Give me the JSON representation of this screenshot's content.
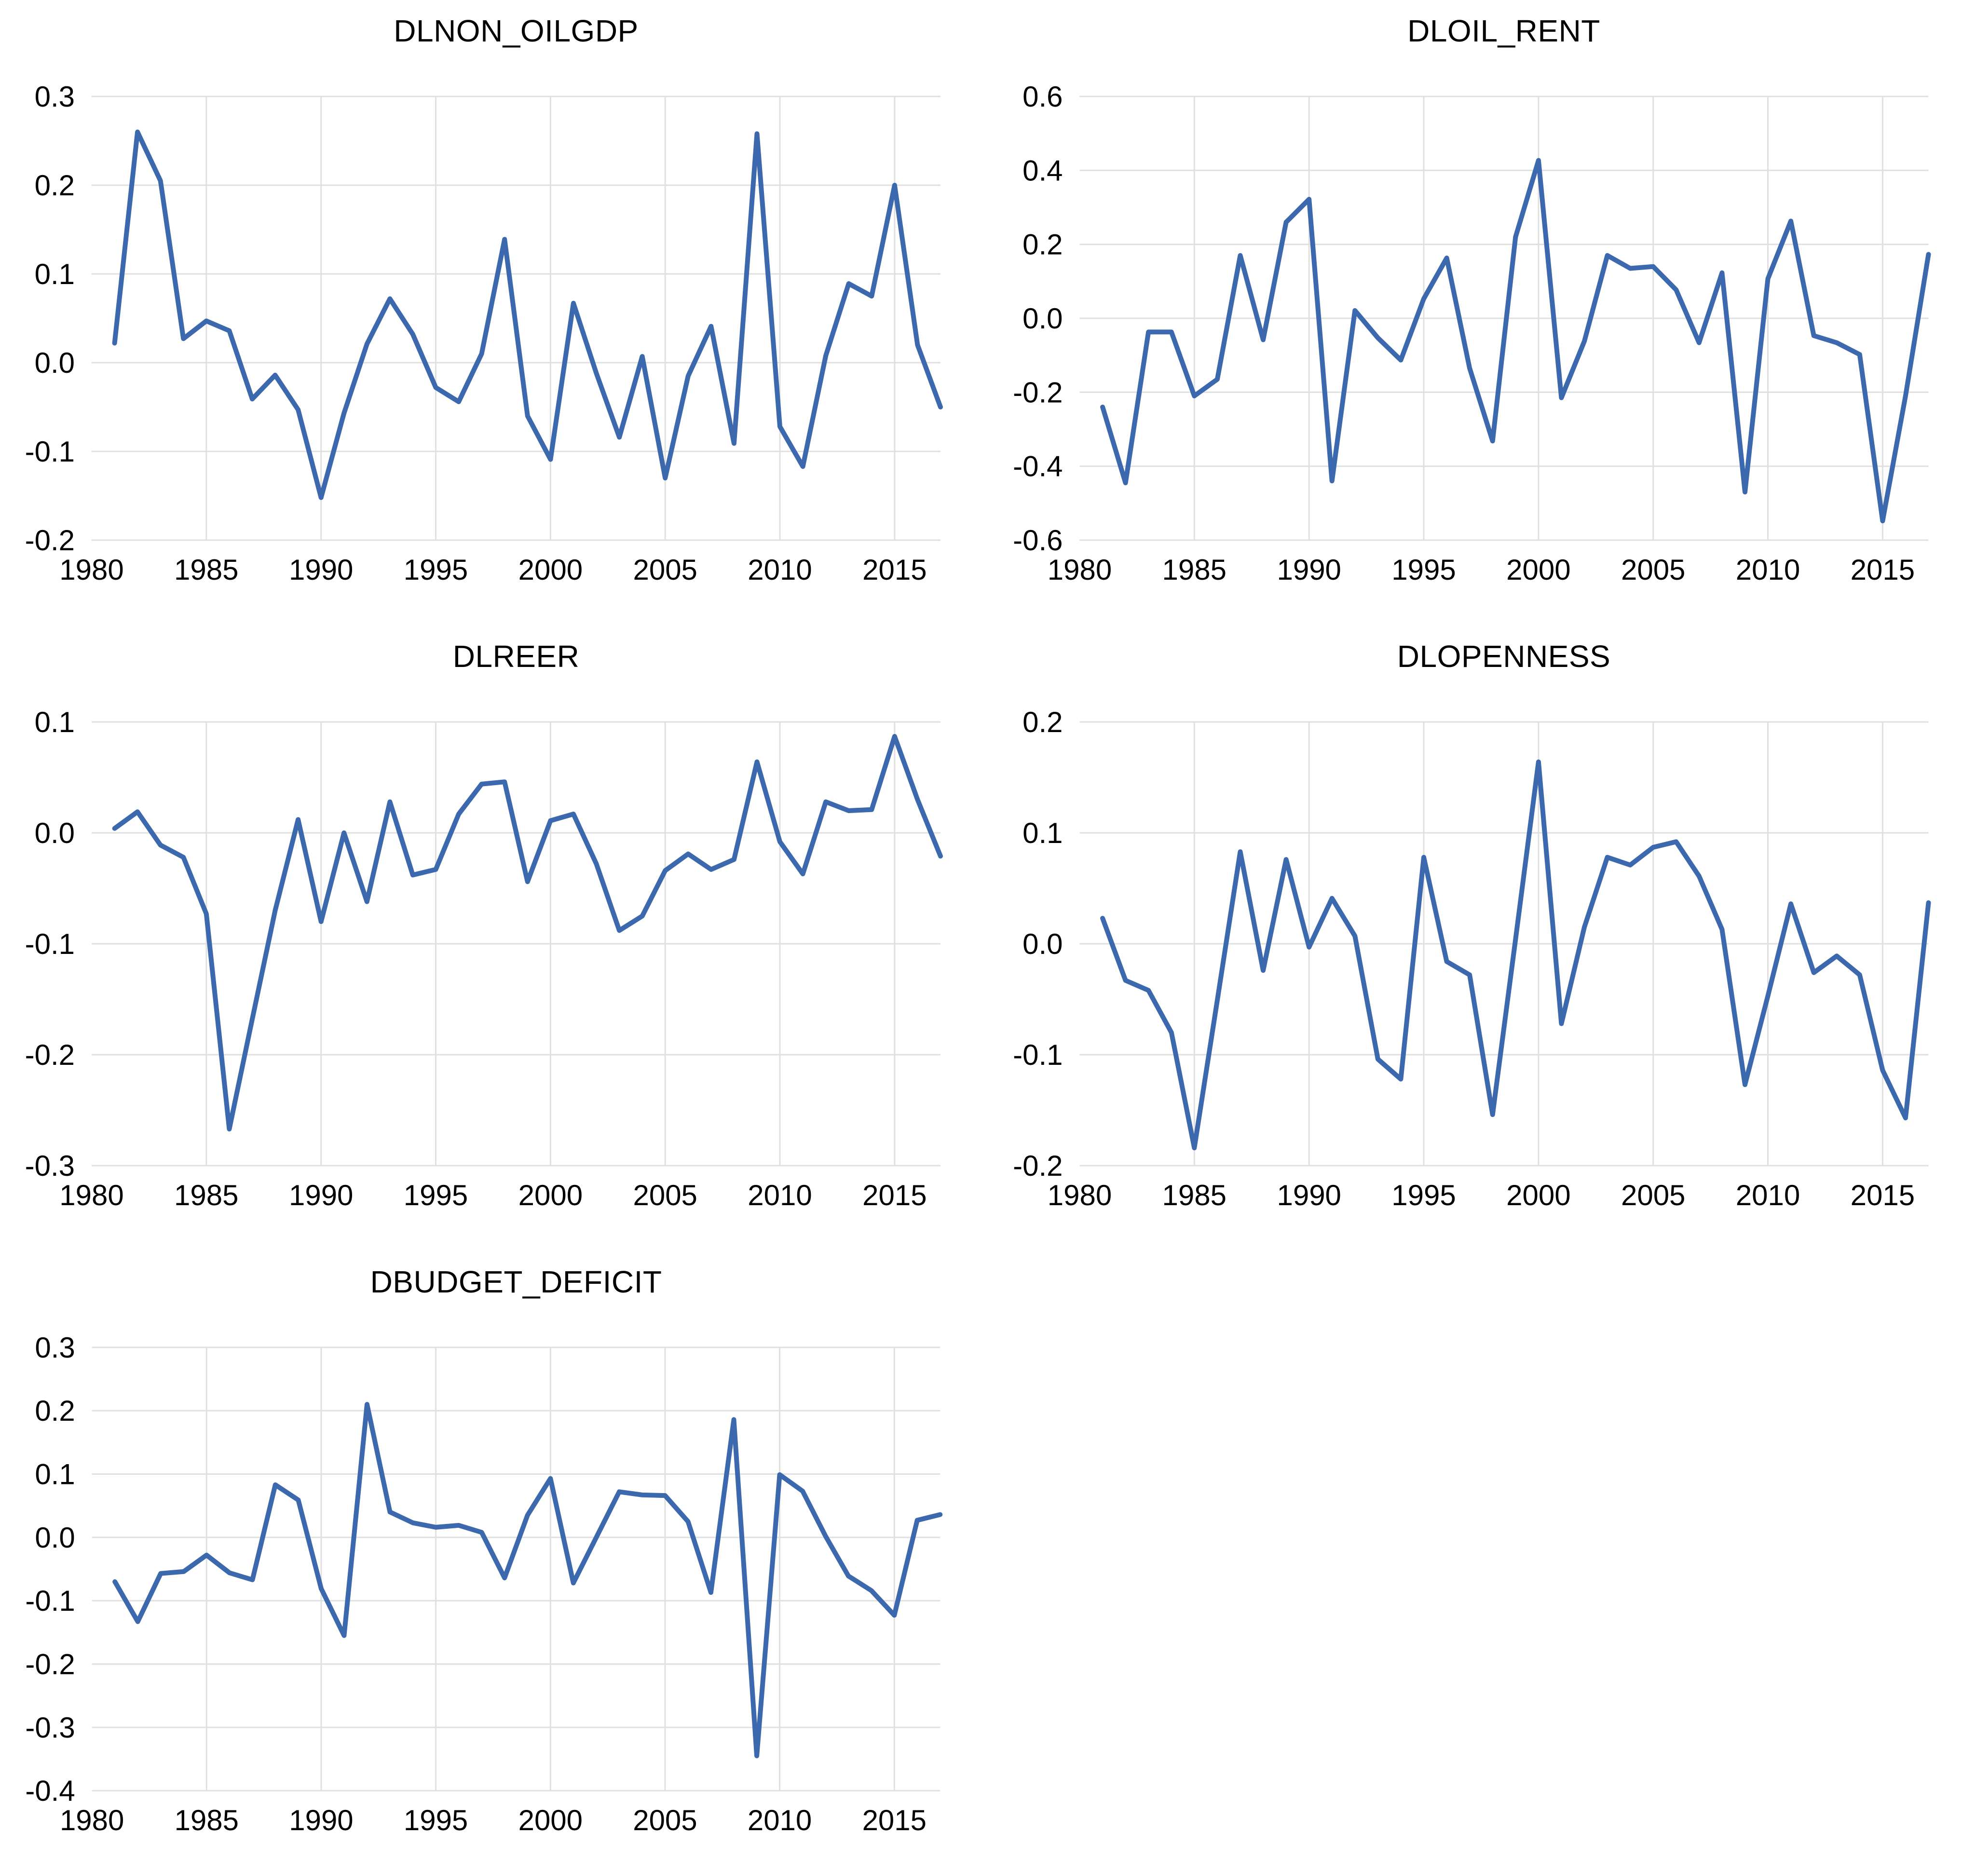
{
  "page": {
    "background": "#FFFFFF",
    "description_titles": [
      "DLNON_OILGDP",
      "DLOIL_RENT",
      "DLREER",
      "DLOPENNESS",
      "DBUDGET_DEFICIT"
    ]
  },
  "style": {
    "line_color": "#3C68AE",
    "grid_color": "#E0E0E0",
    "label_color": "#000000",
    "title_color": "#000000"
  },
  "chart_data": [
    {
      "type": "line",
      "title": "DLNON_OILGDP",
      "xlabel": "",
      "ylabel": "",
      "grid": true,
      "legend": "none",
      "xlim": [
        1980,
        2017
      ],
      "ylim": [
        -0.2,
        0.3
      ],
      "xticks": [
        1980,
        1985,
        1990,
        1995,
        2000,
        2005,
        2010,
        2015
      ],
      "yticks": [
        0.3,
        0.2,
        0.1,
        0.0,
        -0.1,
        -0.2
      ],
      "x": [
        1981,
        1982,
        1983,
        1984,
        1985,
        1986,
        1987,
        1988,
        1989,
        1990,
        1991,
        1992,
        1993,
        1994,
        1995,
        1996,
        1997,
        1998,
        1999,
        2000,
        2001,
        2002,
        2003,
        2004,
        2005,
        2006,
        2007,
        2008,
        2009,
        2010,
        2011,
        2012,
        2013,
        2014,
        2015,
        2016,
        2017
      ],
      "values": [
        0.022,
        0.26,
        0.205,
        0.027,
        0.047,
        0.036,
        -0.041,
        -0.014,
        -0.053,
        -0.152,
        -0.057,
        0.021,
        0.072,
        0.032,
        -0.028,
        -0.044,
        0.01,
        0.139,
        -0.06,
        -0.109,
        0.067,
        -0.012,
        -0.084,
        0.007,
        -0.13,
        -0.015,
        0.041,
        -0.091,
        0.258,
        -0.072,
        -0.117,
        0.008,
        0.089,
        0.075,
        0.2,
        0.02,
        -0.05
      ]
    },
    {
      "type": "line",
      "title": "DLOIL_RENT",
      "xlabel": "",
      "ylabel": "",
      "grid": true,
      "legend": "none",
      "xlim": [
        1980,
        2017
      ],
      "ylim": [
        -0.6,
        0.6
      ],
      "xticks": [
        1980,
        1985,
        1990,
        1995,
        2000,
        2005,
        2010,
        2015
      ],
      "yticks": [
        0.6,
        0.4,
        0.2,
        0.0,
        -0.2,
        -0.4,
        -0.6
      ],
      "x": [
        1981,
        1982,
        1983,
        1984,
        1985,
        1986,
        1987,
        1988,
        1989,
        1990,
        1991,
        1992,
        1993,
        1994,
        1995,
        1996,
        1997,
        1998,
        1999,
        2000,
        2001,
        2002,
        2003,
        2004,
        2005,
        2006,
        2007,
        2008,
        2009,
        2010,
        2011,
        2012,
        2013,
        2014,
        2015,
        2016,
        2017
      ],
      "values": [
        -0.24,
        -0.445,
        -0.037,
        -0.037,
        -0.21,
        -0.165,
        0.17,
        -0.058,
        0.26,
        0.322,
        -0.44,
        0.021,
        -0.053,
        -0.113,
        0.053,
        0.163,
        -0.135,
        -0.332,
        0.22,
        0.427,
        -0.215,
        -0.062,
        0.17,
        0.135,
        0.14,
        0.077,
        -0.066,
        0.123,
        -0.47,
        0.107,
        0.263,
        -0.047,
        -0.066,
        -0.098,
        -0.548,
        -0.21,
        0.173
      ]
    },
    {
      "type": "line",
      "title": "DLREER",
      "xlabel": "",
      "ylabel": "",
      "grid": true,
      "legend": "none",
      "xlim": [
        1980,
        2017
      ],
      "ylim": [
        -0.3,
        0.1
      ],
      "xticks": [
        1980,
        1985,
        1990,
        1995,
        2000,
        2005,
        2010,
        2015
      ],
      "yticks": [
        0.1,
        0.0,
        -0.1,
        -0.2,
        -0.3
      ],
      "x": [
        1981,
        1982,
        1983,
        1984,
        1985,
        1986,
        1987,
        1988,
        1989,
        1990,
        1991,
        1992,
        1993,
        1994,
        1995,
        1996,
        1997,
        1998,
        1999,
        2000,
        2001,
        2002,
        2003,
        2004,
        2005,
        2006,
        2007,
        2008,
        2009,
        2010,
        2011,
        2012,
        2013,
        2014,
        2015,
        2016,
        2017
      ],
      "values": [
        0.004,
        0.019,
        -0.011,
        -0.022,
        -0.073,
        -0.267,
        -0.168,
        -0.07,
        0.012,
        -0.08,
        0.0,
        -0.062,
        0.028,
        -0.038,
        -0.033,
        0.017,
        0.044,
        0.046,
        -0.044,
        0.011,
        0.017,
        -0.028,
        -0.088,
        -0.075,
        -0.034,
        -0.019,
        -0.033,
        -0.024,
        0.064,
        -0.008,
        -0.037,
        0.028,
        0.02,
        0.021,
        0.087,
        0.03,
        -0.021
      ]
    },
    {
      "type": "line",
      "title": "DLOPENNESS",
      "xlabel": "",
      "ylabel": "",
      "grid": true,
      "legend": "none",
      "xlim": [
        1980,
        2017
      ],
      "ylim": [
        -0.2,
        0.2
      ],
      "xticks": [
        1980,
        1985,
        1990,
        1995,
        2000,
        2005,
        2010,
        2015
      ],
      "yticks": [
        0.2,
        0.1,
        0.0,
        -0.1,
        -0.2
      ],
      "x": [
        1981,
        1982,
        1983,
        1984,
        1985,
        1986,
        1987,
        1988,
        1989,
        1990,
        1991,
        1992,
        1993,
        1994,
        1995,
        1996,
        1997,
        1998,
        1999,
        2000,
        2001,
        2002,
        2003,
        2004,
        2005,
        2006,
        2007,
        2008,
        2009,
        2010,
        2011,
        2012,
        2013,
        2014,
        2015,
        2016,
        2017
      ],
      "values": [
        0.023,
        -0.033,
        -0.042,
        -0.08,
        -0.184,
        -0.051,
        0.083,
        -0.024,
        0.076,
        -0.003,
        0.041,
        0.007,
        -0.104,
        -0.122,
        0.078,
        -0.016,
        -0.028,
        -0.154,
        0.004,
        0.164,
        -0.072,
        0.015,
        0.078,
        0.071,
        0.087,
        0.092,
        0.061,
        0.013,
        -0.127,
        -0.047,
        0.036,
        -0.026,
        -0.011,
        -0.028,
        -0.114,
        -0.157,
        0.037
      ]
    },
    {
      "type": "line",
      "title": "DBUDGET_DEFICIT",
      "xlabel": "",
      "ylabel": "",
      "grid": true,
      "legend": "none",
      "xlim": [
        1980,
        2017
      ],
      "ylim": [
        -0.4,
        0.3
      ],
      "xticks": [
        1980,
        1985,
        1990,
        1995,
        2000,
        2005,
        2010,
        2015
      ],
      "yticks": [
        0.3,
        0.2,
        0.1,
        0.0,
        -0.1,
        -0.2,
        -0.3,
        -0.4
      ],
      "x": [
        1981,
        1982,
        1983,
        1984,
        1985,
        1986,
        1987,
        1988,
        1989,
        1990,
        1991,
        1992,
        1993,
        1994,
        1995,
        1996,
        1997,
        1998,
        1999,
        2000,
        2001,
        2002,
        2003,
        2004,
        2005,
        2006,
        2007,
        2008,
        2009,
        2010,
        2011,
        2012,
        2013,
        2014,
        2015,
        2016,
        2017
      ],
      "values": [
        -0.07,
        -0.133,
        -0.057,
        -0.054,
        -0.028,
        -0.056,
        -0.067,
        0.083,
        0.059,
        -0.081,
        -0.155,
        0.21,
        0.04,
        0.023,
        0.016,
        0.019,
        0.008,
        -0.064,
        0.035,
        0.093,
        -0.072,
        0.0,
        0.072,
        0.067,
        0.066,
        0.025,
        -0.087,
        0.186,
        -0.345,
        0.099,
        0.073,
        0.002,
        -0.061,
        -0.084,
        -0.123,
        0.027,
        0.036
      ]
    }
  ]
}
